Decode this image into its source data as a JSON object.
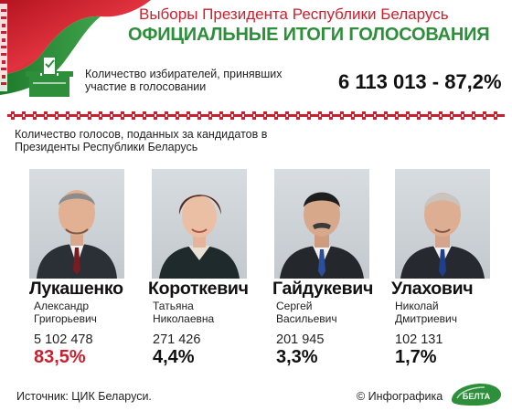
{
  "header": {
    "subtitle": "Выборы Президента Республики Беларусь",
    "title": "ОФИЦИАЛЬНЫЕ ИТОГИ ГОЛОСОВАНИЯ"
  },
  "turnout": {
    "label": "Количество избирателей, принявших участие в голосовании",
    "value": "6 113 013 - 87,2%"
  },
  "section_title": "Количество голосов, поданных за кандидатов в Президенты Республики Беларусь",
  "candidates": [
    {
      "surname": "Лукашенко",
      "first_name": "Александр",
      "patronymic": "Григорьевич",
      "votes": "5 102 478",
      "percent": "83,5%"
    },
    {
      "surname": "Короткевич",
      "first_name": "Татьяна",
      "patronymic": "Николаевна",
      "votes": "271 426",
      "percent": "4,4%"
    },
    {
      "surname": "Гайдукевич",
      "first_name": "Сергей",
      "patronymic": "Васильевич",
      "votes": "201 945",
      "percent": "3,3%"
    },
    {
      "surname": "Улахович",
      "first_name": "Николай",
      "patronymic": "Дмитриевич",
      "votes": "102 131",
      "percent": "1,7%"
    }
  ],
  "footer": {
    "source": "Источник: ЦИК Беларуси.",
    "credit": "© Инфографика",
    "logo_text": "БЕЛТА"
  },
  "colors": {
    "title_green": "#2d8f3a",
    "subtitle_red": "#cc1f2d",
    "winner_percent": "#c8202f",
    "flag_red": "#cc1f2d",
    "flag_green": "#2d8f3a"
  },
  "icons": {
    "vote": "ballot-box-icon",
    "logo": "belta-logo"
  }
}
